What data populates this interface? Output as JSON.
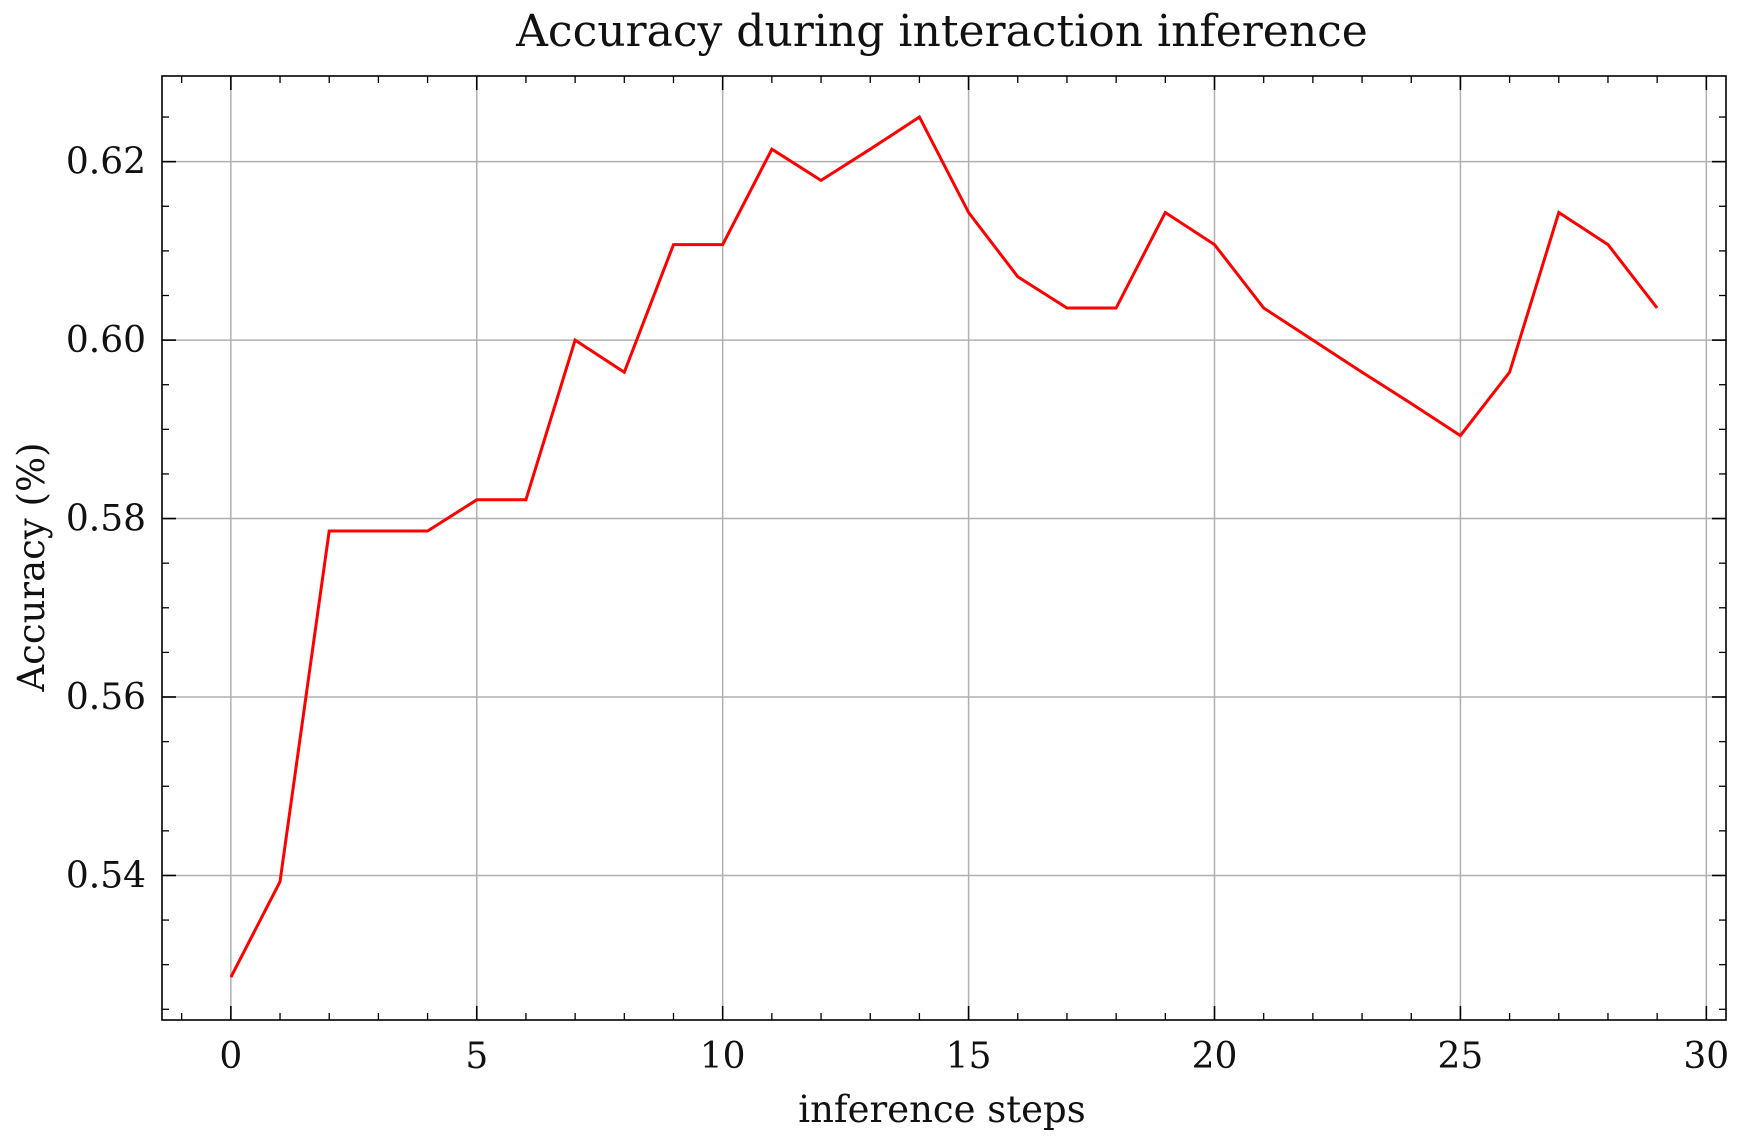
{
  "chart_data": {
    "type": "line",
    "title": "Accuracy during interaction inference",
    "xlabel": "inference steps",
    "ylabel": "Accuracy (%)",
    "xlim": [
      -1.4,
      30.4
    ],
    "ylim": [
      0.5238,
      0.6296
    ],
    "x_ticks": [
      0,
      5,
      10,
      15,
      20,
      25,
      30
    ],
    "x_tick_labels": [
      "0",
      "5",
      "10",
      "15",
      "20",
      "25",
      "30"
    ],
    "y_ticks": [
      0.54,
      0.56,
      0.58,
      0.6,
      0.62
    ],
    "y_tick_labels": [
      "0.54",
      "0.56",
      "0.58",
      "0.60",
      "0.62"
    ],
    "x_minor_step": 1,
    "y_minor_step": 0.005,
    "grid": true,
    "series": [
      {
        "color": "#ff0000",
        "x": [
          0,
          1,
          2,
          3,
          4,
          5,
          6,
          7,
          8,
          9,
          10,
          11,
          12,
          13,
          14,
          15,
          16,
          17,
          18,
          19,
          20,
          21,
          22,
          23,
          24,
          25,
          26,
          27,
          28,
          29
        ],
        "values": [
          0.5286,
          0.5393,
          0.5786,
          0.5786,
          0.5786,
          0.5821,
          0.5821,
          0.6,
          0.5964,
          0.6107,
          0.6107,
          0.6214,
          0.6179,
          0.6214,
          0.625,
          0.6143,
          0.6071,
          0.6036,
          0.6036,
          0.6143,
          0.6107,
          0.6036,
          0.6,
          0.5964,
          0.5929,
          0.5893,
          0.5964,
          0.6143,
          0.6107,
          0.6036
        ]
      }
    ]
  },
  "colors": {
    "line": "#ff0000",
    "grid": "#b0b0b0",
    "axes": "#000000",
    "background": "#ffffff"
  }
}
